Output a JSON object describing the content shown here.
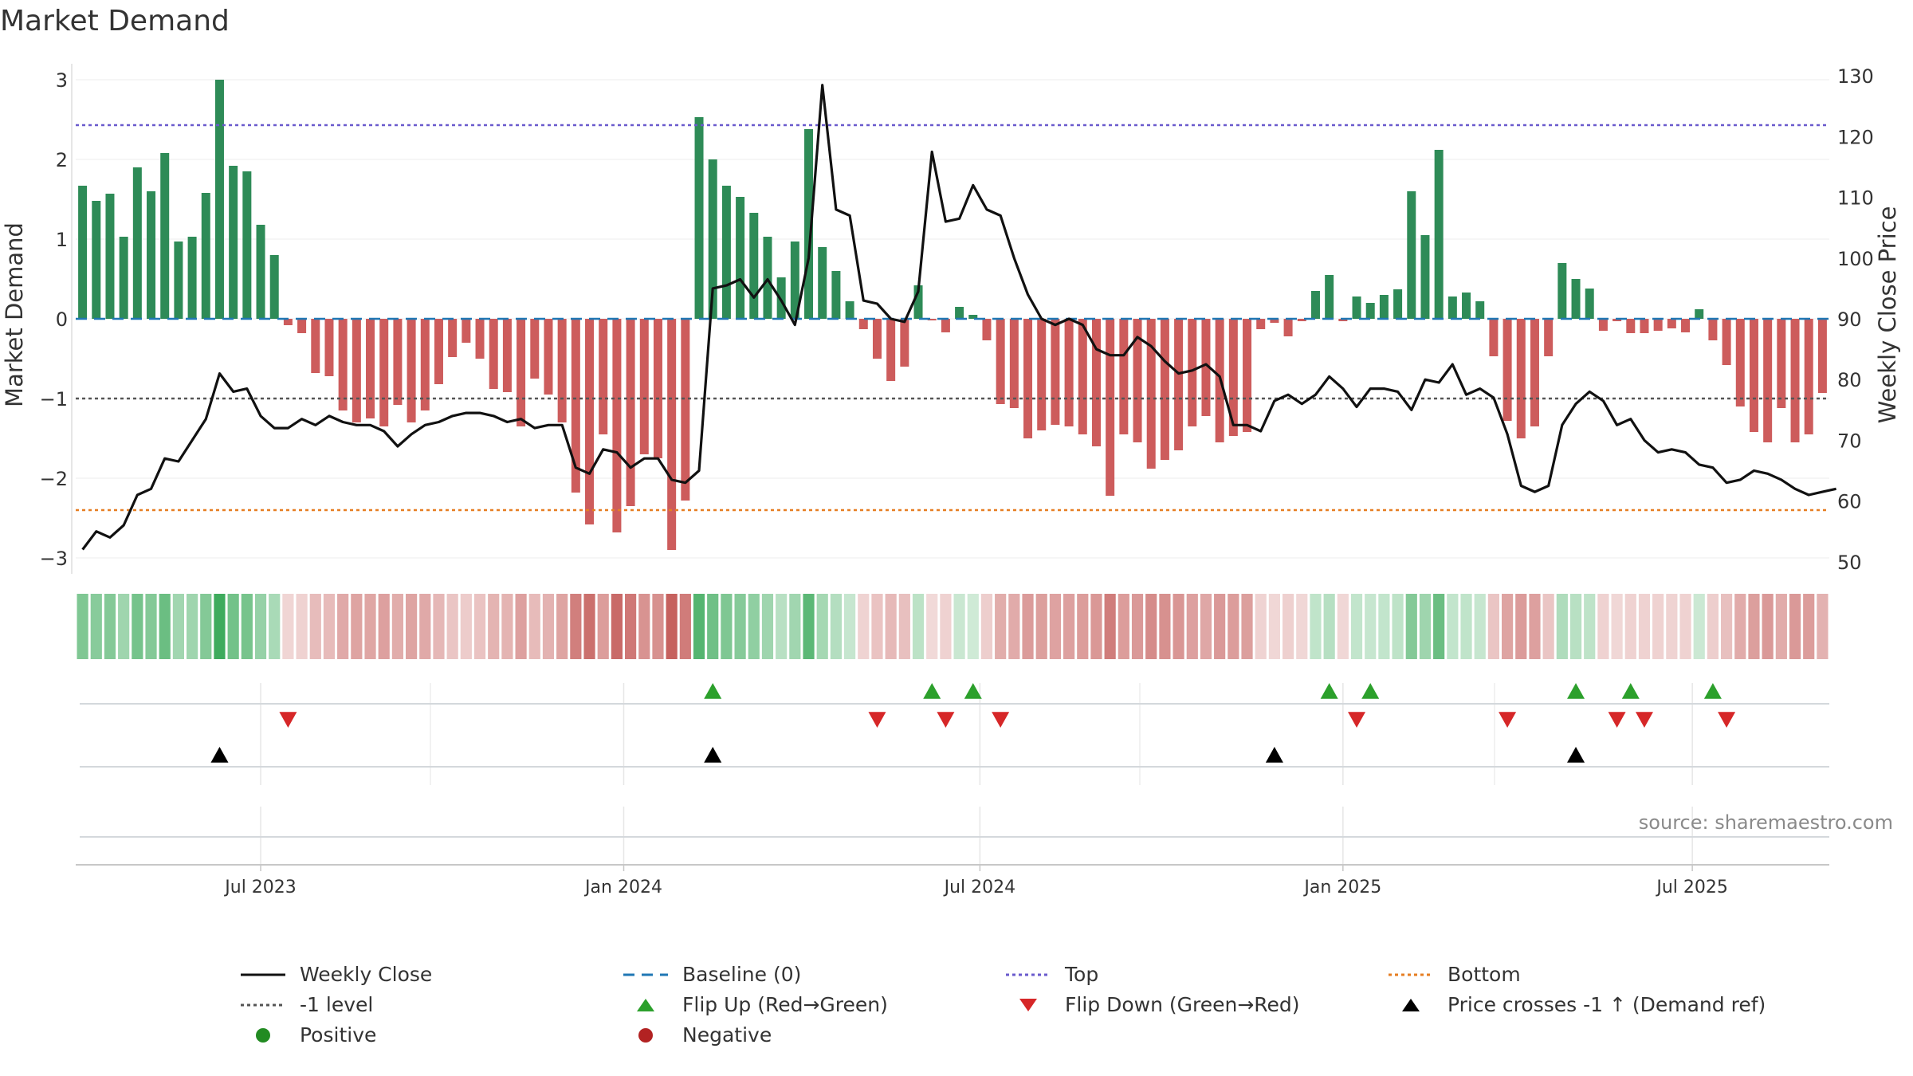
{
  "page": {
    "title": "Market Demand",
    "source": "source: sharemaestro.com"
  },
  "colors": {
    "positive": "#2e8b57",
    "negative": "#cd5c5c",
    "close": "#111111",
    "baseline": "#1f77b4",
    "top": "#6a5acd",
    "bottom": "#e67e22",
    "minus1": "#555555",
    "flip_up": "#2ca02c",
    "flip_down": "#d62728",
    "cross": "#000000",
    "dot_positive": "#228b22",
    "dot_negative": "#b22222"
  },
  "chart_data": {
    "type": "bar",
    "title": "Market Demand",
    "ylabel": "Market Demand",
    "y2label": "Weekly Close Price",
    "ylim": [
      -3.2,
      3.2
    ],
    "y2lim": [
      48,
      132
    ],
    "yticks": [
      "3",
      "2",
      "1",
      "0",
      "−1",
      "−2",
      "−3"
    ],
    "yticks_values": [
      3,
      2,
      1,
      0,
      -1,
      -2,
      -3
    ],
    "y2ticks": [
      "130",
      "120",
      "110",
      "100",
      "90",
      "80",
      "70",
      "60",
      "50"
    ],
    "y2ticks_values": [
      130,
      120,
      110,
      100,
      90,
      80,
      70,
      60,
      50
    ],
    "xticks": [
      "Jul 2023",
      "Jan 2024",
      "Jul 2024",
      "Jan 2025",
      "Jul 2025"
    ],
    "xticks_index": [
      13,
      39.5,
      65.5,
      92,
      117.5
    ],
    "reference_lines": {
      "top": 2.43,
      "bottom": -2.4,
      "minus1": -1,
      "baseline": 0
    },
    "demand": [
      1.67,
      1.48,
      1.57,
      1.03,
      1.9,
      1.6,
      2.08,
      0.97,
      1.03,
      1.58,
      3.0,
      1.92,
      1.85,
      1.18,
      0.8,
      -0.08,
      -0.18,
      -0.68,
      -0.72,
      -1.15,
      -1.3,
      -1.25,
      -1.35,
      -1.08,
      -1.3,
      -1.15,
      -0.82,
      -0.48,
      -0.3,
      -0.5,
      -0.88,
      -0.92,
      -1.35,
      -0.75,
      -0.95,
      -1.3,
      -2.18,
      -2.58,
      -1.45,
      -2.68,
      -2.35,
      -1.7,
      -1.75,
      -2.9,
      -2.28,
      2.53,
      2.0,
      1.67,
      1.53,
      1.33,
      1.03,
      0.52,
      0.97,
      2.38,
      0.9,
      0.6,
      0.22,
      -0.13,
      -0.5,
      -0.78,
      -0.6,
      0.42,
      -0.02,
      -0.17,
      0.15,
      0.05,
      -0.27,
      -1.07,
      -1.12,
      -1.5,
      -1.4,
      -1.33,
      -1.35,
      -1.45,
      -1.6,
      -2.22,
      -1.45,
      -1.55,
      -1.88,
      -1.77,
      -1.65,
      -1.35,
      -1.22,
      -1.55,
      -1.47,
      -1.42,
      -0.13,
      -0.05,
      -0.22,
      -0.03,
      0.35,
      0.55,
      -0.03,
      0.28,
      0.2,
      0.3,
      0.37,
      1.6,
      1.05,
      2.12,
      0.28,
      0.33,
      0.22,
      -0.47,
      -1.28,
      -1.5,
      -1.35,
      -0.47,
      0.7,
      0.5,
      0.38,
      -0.15,
      -0.03,
      -0.18,
      -0.18,
      -0.15,
      -0.12,
      -0.17,
      0.12,
      -0.27,
      -0.58,
      -1.1,
      -1.42,
      -1.55,
      -1.12,
      -1.55,
      -1.45,
      -0.93
    ],
    "close": [
      52,
      55,
      54,
      56,
      61,
      62,
      67,
      66.5,
      70,
      73.5,
      81,
      78,
      78.5,
      74,
      72,
      72,
      73.5,
      72.5,
      74,
      73,
      72.5,
      72.5,
      71.5,
      69,
      71,
      72.5,
      73,
      74,
      74.5,
      74.5,
      74,
      73,
      73.5,
      72,
      72.5,
      72.5,
      65.5,
      64.5,
      68.5,
      68,
      65.5,
      67,
      67,
      63.5,
      63,
      65,
      95,
      95.5,
      96.5,
      93.5,
      96.5,
      93,
      89,
      100,
      128.5,
      108,
      107,
      93,
      92.5,
      90,
      89.5,
      94.5,
      117.5,
      106,
      106.5,
      112,
      108,
      107,
      100,
      94,
      90,
      89,
      90,
      89,
      85,
      84,
      84,
      87,
      85.5,
      83,
      81,
      81.5,
      82.5,
      80.5,
      72.5,
      72.5,
      71.5,
      76.5,
      77.5,
      76,
      77.5,
      80.5,
      78.5,
      75.5,
      78.5,
      78.5,
      78,
      75,
      80,
      79.5,
      82.5,
      77.5,
      78.5,
      77,
      71,
      62.5,
      61.5,
      62.5,
      72.5,
      76,
      78,
      76.5,
      72.5,
      73.5,
      70,
      68,
      68.5,
      68,
      66,
      65.5,
      63,
      63.5,
      65,
      64.5,
      63.5,
      62,
      61,
      61.5,
      62
    ],
    "signals": {
      "flip_up": [
        46,
        62,
        65,
        91,
        94,
        109,
        113,
        119
      ],
      "flip_down": [
        15,
        58,
        63,
        67,
        93,
        104,
        112,
        114,
        120
      ],
      "price_crosses": [
        10,
        46,
        87,
        109
      ]
    }
  },
  "legend": [
    {
      "label": "Weekly Close",
      "icon": "solid-line",
      "color": "#111111"
    },
    {
      "label": "Baseline (0)",
      "icon": "dashed-line",
      "color": "#1f77b4"
    },
    {
      "label": "Top",
      "icon": "dotted-line",
      "color": "#6a5acd"
    },
    {
      "label": "Bottom",
      "icon": "dotted-line",
      "color": "#e67e22"
    },
    {
      "label": "-1 level",
      "icon": "dotted-line",
      "color": "#555555"
    },
    {
      "label": "Flip Up (Red→Green)",
      "icon": "triangle-up",
      "color": "#2ca02c"
    },
    {
      "label": "Flip Down (Green→Red)",
      "icon": "triangle-down",
      "color": "#d62728"
    },
    {
      "label": "Price crosses -1 ↑ (Demand ref)",
      "icon": "triangle-up",
      "color": "#000000"
    },
    {
      "label": "Positive",
      "icon": "dot",
      "color": "#228b22"
    },
    {
      "label": "Negative",
      "icon": "dot",
      "color": "#b22222"
    }
  ]
}
